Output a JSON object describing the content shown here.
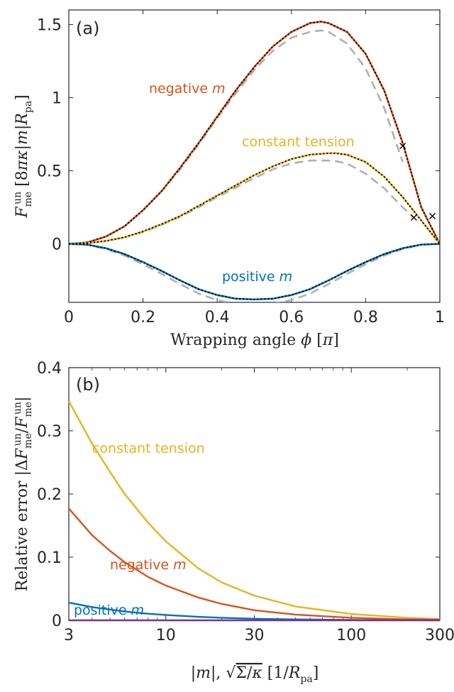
{
  "colors": {
    "negative": "#d95319",
    "tension": "#edb120",
    "positive": "#0072bd",
    "zero": "#7e2f8e",
    "dashed": "#b0b0b0",
    "dotted": "#000000",
    "axis": "#262626"
  },
  "chart_data": [
    {
      "type": "line",
      "panel_label": "(a)",
      "xlabel": "Wrapping angle φ [π]",
      "ylabel": "F_me^un [8πκ|m|R_pa]",
      "xlim": [
        0,
        1
      ],
      "ylim": [
        -0.4,
        1.6
      ],
      "xticks": [
        "0",
        "0.2",
        "0.4",
        "0.6",
        "0.8",
        "1"
      ],
      "yticks": [
        "0",
        "0.5",
        "1",
        "1.5"
      ],
      "grid": false,
      "annotations": {
        "negative": {
          "text": "negative ",
          "m": "m"
        },
        "tension": {
          "text": "constant tension"
        },
        "positive": {
          "text": "positive ",
          "m": "m"
        }
      },
      "series": [
        {
          "key": "negative",
          "style": "solid",
          "x": [
            0,
            0.05,
            0.1,
            0.15,
            0.2,
            0.25,
            0.3,
            0.35,
            0.4,
            0.45,
            0.5,
            0.55,
            0.6,
            0.65,
            0.68,
            0.7,
            0.75,
            0.8,
            0.85,
            0.9,
            0.95,
            1.0
          ],
          "y": [
            0,
            0.01,
            0.05,
            0.12,
            0.23,
            0.36,
            0.52,
            0.69,
            0.87,
            1.05,
            1.21,
            1.35,
            1.45,
            1.51,
            1.52,
            1.51,
            1.45,
            1.3,
            1.05,
            0.69,
            0.25,
            0
          ]
        },
        {
          "key": "negative_approx",
          "style": "dashed",
          "x": [
            0,
            0.05,
            0.1,
            0.15,
            0.2,
            0.25,
            0.3,
            0.35,
            0.4,
            0.45,
            0.5,
            0.55,
            0.6,
            0.65,
            0.68,
            0.7,
            0.75,
            0.8,
            0.85,
            0.9
          ],
          "y": [
            0,
            0.01,
            0.05,
            0.12,
            0.23,
            0.36,
            0.51,
            0.68,
            0.86,
            1.03,
            1.19,
            1.32,
            1.41,
            1.45,
            1.46,
            1.45,
            1.37,
            1.2,
            0.93,
            0.56
          ]
        },
        {
          "key": "tension",
          "style": "solid",
          "x": [
            0,
            0.05,
            0.1,
            0.15,
            0.2,
            0.25,
            0.3,
            0.35,
            0.4,
            0.45,
            0.5,
            0.55,
            0.6,
            0.65,
            0.7,
            0.72,
            0.75,
            0.8,
            0.85,
            0.9,
            0.95,
            1.0
          ],
          "y": [
            0,
            0.005,
            0.02,
            0.045,
            0.085,
            0.135,
            0.19,
            0.26,
            0.33,
            0.4,
            0.47,
            0.53,
            0.58,
            0.61,
            0.62,
            0.62,
            0.61,
            0.56,
            0.46,
            0.32,
            0.16,
            0
          ]
        },
        {
          "key": "tension_approx",
          "style": "dashed",
          "x": [
            0,
            0.05,
            0.1,
            0.15,
            0.2,
            0.25,
            0.3,
            0.35,
            0.4,
            0.45,
            0.5,
            0.55,
            0.6,
            0.65,
            0.7,
            0.72,
            0.75,
            0.8,
            0.85,
            0.9,
            0.93
          ],
          "y": [
            0,
            0.005,
            0.02,
            0.045,
            0.08,
            0.13,
            0.185,
            0.25,
            0.32,
            0.385,
            0.45,
            0.51,
            0.55,
            0.57,
            0.57,
            0.565,
            0.55,
            0.48,
            0.38,
            0.25,
            0.18
          ]
        },
        {
          "key": "positive",
          "style": "solid",
          "x": [
            0,
            0.05,
            0.1,
            0.15,
            0.2,
            0.25,
            0.3,
            0.35,
            0.4,
            0.45,
            0.5,
            0.55,
            0.6,
            0.65,
            0.7,
            0.75,
            0.8,
            0.85,
            0.9,
            0.95,
            1.0
          ],
          "y": [
            0,
            -0.005,
            -0.03,
            -0.07,
            -0.125,
            -0.185,
            -0.25,
            -0.31,
            -0.35,
            -0.375,
            -0.38,
            -0.375,
            -0.35,
            -0.31,
            -0.25,
            -0.185,
            -0.125,
            -0.07,
            -0.03,
            -0.005,
            0
          ]
        },
        {
          "key": "positive_approx",
          "style": "dashed",
          "x": [
            0,
            0.05,
            0.1,
            0.15,
            0.2,
            0.25,
            0.3,
            0.35,
            0.4,
            0.45,
            0.5,
            0.55,
            0.6,
            0.65,
            0.7,
            0.75,
            0.8,
            0.85,
            0.9,
            0.95,
            1.0
          ],
          "y": [
            0,
            -0.006,
            -0.035,
            -0.08,
            -0.14,
            -0.205,
            -0.275,
            -0.34,
            -0.385,
            -0.41,
            -0.415,
            -0.41,
            -0.385,
            -0.34,
            -0.275,
            -0.205,
            -0.14,
            -0.08,
            -0.035,
            -0.006,
            0
          ]
        }
      ],
      "crosses": [
        {
          "x": 0.9,
          "y": 0.67
        },
        {
          "x": 0.93,
          "y": 0.18
        },
        {
          "x": 0.98,
          "y": 0.19
        }
      ]
    },
    {
      "type": "line",
      "panel_label": "(b)",
      "xlabel": "|m|, √(Σ/κ) [1/R_pa]",
      "ylabel": "Relative error |ΔF_me^un / F_me^un|",
      "xscale": "log",
      "xlim": [
        3,
        300
      ],
      "ylim": [
        0,
        0.4
      ],
      "xticks": [
        {
          "v": 3,
          "t": "3"
        },
        {
          "v": 10,
          "t": "10"
        },
        {
          "v": 30,
          "t": "30"
        },
        {
          "v": 100,
          "t": "100"
        },
        {
          "v": 300,
          "t": "300"
        }
      ],
      "yticks": [
        "0",
        "0.1",
        "0.2",
        "0.3",
        "0.4"
      ],
      "grid": false,
      "annotations": {
        "tension": {
          "text": "constant tension"
        },
        "negative": {
          "text": "negative ",
          "m": "m"
        },
        "positive": {
          "text": "positive ",
          "m": "m"
        }
      },
      "series": [
        {
          "key": "tension",
          "x": [
            3,
            4,
            5,
            6,
            8,
            10,
            15,
            20,
            30,
            50,
            100,
            200,
            300
          ],
          "y": [
            0.347,
            0.28,
            0.235,
            0.2,
            0.155,
            0.125,
            0.082,
            0.06,
            0.039,
            0.022,
            0.01,
            0.004,
            0.002
          ]
        },
        {
          "key": "negative",
          "x": [
            3,
            4,
            5,
            6,
            8,
            10,
            15,
            20,
            30,
            50,
            100,
            200,
            300
          ],
          "y": [
            0.177,
            0.135,
            0.11,
            0.092,
            0.069,
            0.055,
            0.036,
            0.026,
            0.016,
            0.009,
            0.004,
            0.0015,
            0.001
          ]
        },
        {
          "key": "positive",
          "x": [
            3,
            4,
            5,
            6,
            8,
            10,
            15,
            20,
            30,
            50,
            100,
            200,
            300
          ],
          "y": [
            0.028,
            0.021,
            0.017,
            0.014,
            0.0105,
            0.0085,
            0.0055,
            0.004,
            0.0025,
            0.0014,
            0.0006,
            0.0002,
            0.0001
          ]
        },
        {
          "key": "zero",
          "x": [
            3,
            300
          ],
          "y": [
            0,
            0
          ]
        }
      ]
    }
  ]
}
